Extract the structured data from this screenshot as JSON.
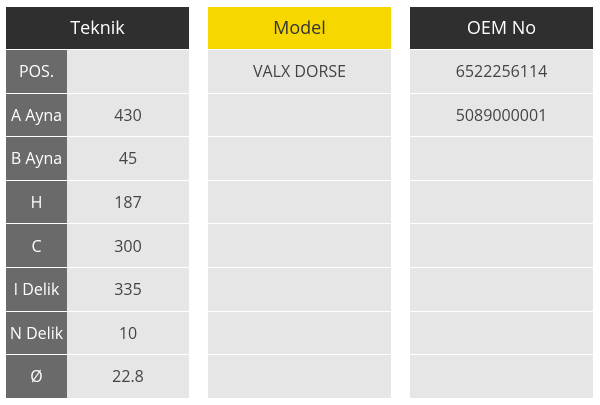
{
  "teknik": {
    "header": "Teknik",
    "rows": [
      {
        "key": "POS.",
        "value": ""
      },
      {
        "key": "A Ayna",
        "value": "430"
      },
      {
        "key": "B Ayna",
        "value": "45"
      },
      {
        "key": "H",
        "value": "187"
      },
      {
        "key": "C",
        "value": "300"
      },
      {
        "key": "I Delik",
        "value": "335"
      },
      {
        "key": "N Delik",
        "value": "10"
      },
      {
        "key": "Ø",
        "value": "22.8"
      }
    ]
  },
  "model": {
    "header": "Model",
    "rows": [
      "VALX DORSE",
      "",
      "",
      "",
      "",
      "",
      "",
      ""
    ]
  },
  "oem": {
    "header": "OEM No",
    "rows": [
      "6522256114",
      "5089000001",
      "",
      "",
      "",
      "",
      "",
      ""
    ]
  },
  "colors": {
    "dark_header": "#2f2f2f",
    "yellow_header": "#f6d700",
    "key_cell": "#6a6a6a",
    "value_cell": "#e6e6e6"
  }
}
